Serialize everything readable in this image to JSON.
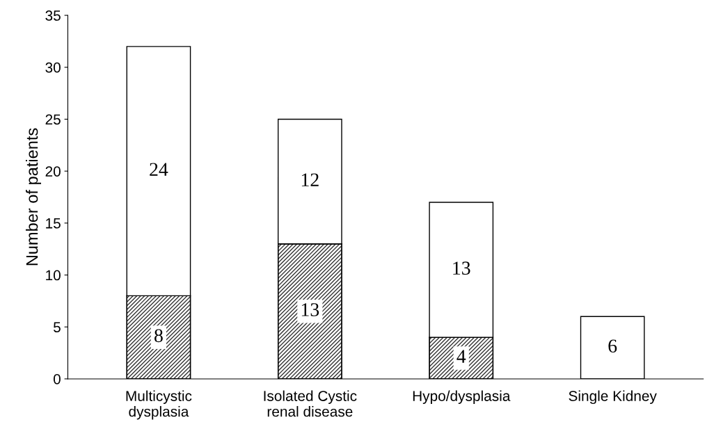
{
  "chart_data": {
    "type": "bar",
    "stacked": true,
    "ylabel": "Number of patients",
    "categories": [
      "Multicystic\ndysplasia",
      "Isolated Cystic\nrenal disease",
      "Hypo/dysplasia",
      "Single Kidney"
    ],
    "series": [
      {
        "color": "#333333",
        "values": [
          8,
          13,
          4,
          0
        ],
        "value_labels": [
          "8",
          "13",
          "4",
          null
        ]
      },
      {
        "color": "#ffffff",
        "values": [
          24,
          12,
          13,
          6
        ],
        "value_labels": [
          "24",
          "12",
          "13",
          "6"
        ]
      }
    ],
    "ylim": [
      0,
      35
    ],
    "yticks": [
      0,
      5,
      10,
      15,
      20,
      25,
      30,
      35
    ],
    "grid": false,
    "legend": false
  }
}
